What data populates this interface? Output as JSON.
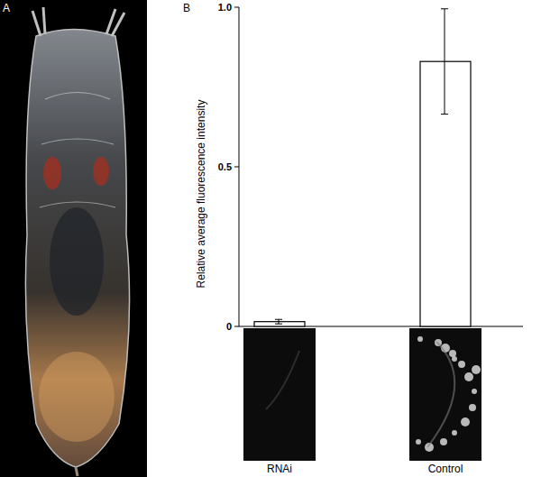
{
  "panel_labels": [
    "A",
    "B"
  ],
  "chart_data": {
    "type": "bar",
    "y_label": "Relative average fluorescence intensity",
    "categories": [
      "RNAi",
      "Control"
    ],
    "values": [
      0.015,
      0.83
    ],
    "errors": [
      0.007,
      0.165
    ],
    "color": "#ffffff",
    "ylim": [
      0,
      1
    ],
    "yticks": [
      0,
      0.5,
      {
        "value": 1,
        "label": "1.0"
      }
    ],
    "grid": false
  }
}
